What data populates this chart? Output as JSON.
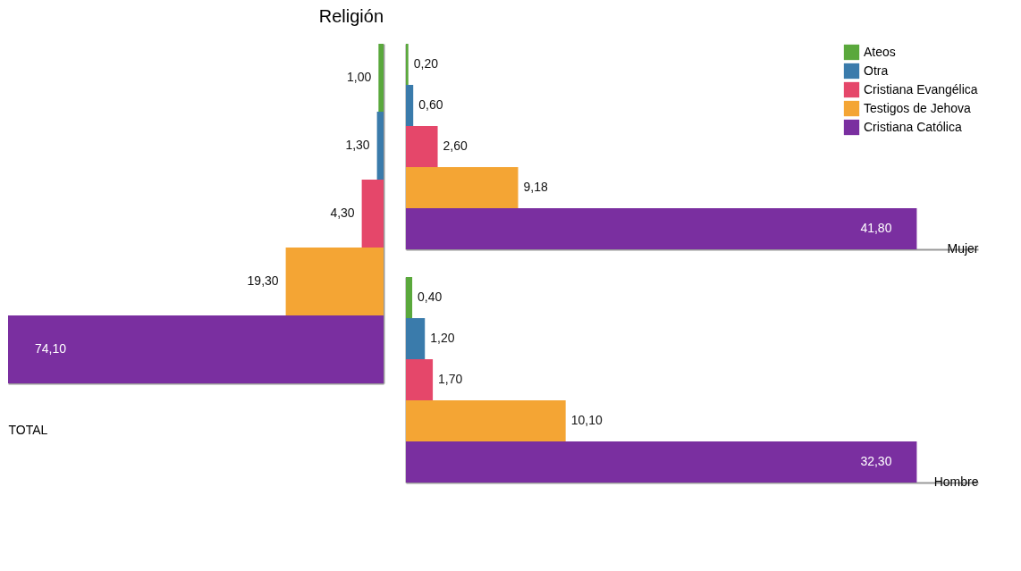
{
  "chart_data": [
    {
      "type": "bar",
      "title": "Religión",
      "xlabel": "TOTAL",
      "orientation": "horizontal",
      "xlim": [
        74.1,
        0
      ],
      "tick_labels": false,
      "categories": [
        null
      ],
      "series": [
        {
          "color": "#5aa83c",
          "values": [
            1.0
          ],
          "value_labels": [
            "1,00"
          ]
        },
        {
          "color": "#3a7bab",
          "values": [
            1.3
          ],
          "value_labels": [
            "1,30"
          ]
        },
        {
          "color": "#e5476a",
          "values": [
            4.3
          ],
          "value_labels": [
            "4,30"
          ]
        },
        {
          "color": "#f4a534",
          "values": [
            19.3
          ],
          "value_labels": [
            "19,30"
          ]
        },
        {
          "color": "#7a2fa0",
          "values": [
            74.1
          ],
          "value_labels": [
            "74,10"
          ]
        }
      ]
    },
    {
      "type": "bar",
      "xlabel": "Mujer",
      "orientation": "horizontal",
      "tick_labels": false,
      "legend": "top right",
      "categories": [
        null
      ],
      "series": [
        {
          "name": "Ateos",
          "color": "#5aa83c",
          "values": [
            0.2
          ],
          "value_labels": [
            "0,20"
          ]
        },
        {
          "name": "Otra",
          "color": "#3a7bab",
          "values": [
            0.6
          ],
          "value_labels": [
            "0,60"
          ]
        },
        {
          "name": "Cristiana Evangélica",
          "color": "#e5476a",
          "values": [
            2.6
          ],
          "value_labels": [
            "2,60"
          ]
        },
        {
          "name": "Testigos de Jehova",
          "color": "#f4a534",
          "values": [
            9.18
          ],
          "value_labels": [
            "9,18"
          ]
        },
        {
          "name": "Cristiana Católica",
          "color": "#7a2fa0",
          "values": [
            41.8
          ],
          "value_labels": [
            "41,80"
          ]
        }
      ]
    },
    {
      "type": "bar",
      "xlabel": "Hombre",
      "orientation": "horizontal",
      "tick_labels": false,
      "categories": [
        null
      ],
      "series": [
        {
          "color": "#5aa83c",
          "values": [
            0.4
          ],
          "value_labels": [
            "0,40"
          ]
        },
        {
          "color": "#3a7bab",
          "values": [
            1.2
          ],
          "value_labels": [
            "1,20"
          ]
        },
        {
          "color": "#e5476a",
          "values": [
            1.7
          ],
          "value_labels": [
            "1,70"
          ]
        },
        {
          "color": "#f4a534",
          "values": [
            10.1
          ],
          "value_labels": [
            "10,10"
          ]
        },
        {
          "color": "#7a2fa0",
          "values": [
            32.3
          ],
          "value_labels": [
            "32,30"
          ]
        }
      ]
    }
  ]
}
